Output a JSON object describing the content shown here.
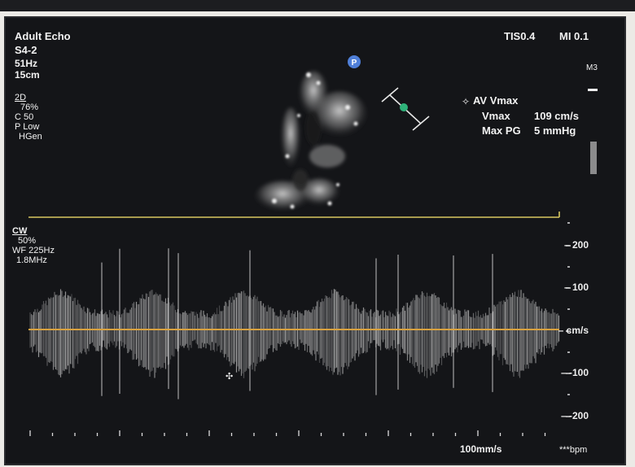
{
  "header": {
    "preset": "Adult Echo",
    "probe": "S4-2",
    "frame_rate": "51Hz",
    "depth": "15cm",
    "tis": "TIS0.4",
    "mi": "MI 0.1",
    "marker": "M3"
  },
  "mode_2d": {
    "label": "2D",
    "gain": "76%",
    "compression": "C 50",
    "persistence": "P Low",
    "frequency": "HGen"
  },
  "cw_settings": {
    "label": "CW",
    "gain": "50%",
    "wall_filter": "WF 225Hz",
    "frequency": "1.8MHz"
  },
  "measurement": {
    "title": "AV Vmax",
    "vmax_label": "Vmax",
    "vmax_value": "109 cm/s",
    "pg_label": "Max PG",
    "pg_value": "5 mmHg"
  },
  "orientation_marker": "P",
  "velocity_scale": {
    "labels": [
      "200",
      "100",
      "cm/s",
      "-100",
      "-200"
    ]
  },
  "footer": {
    "sweep_speed": "100mm/s",
    "heart_rate": "***bpm"
  },
  "colors": {
    "background": "#141518",
    "baseline": "#d9a240",
    "line": "#d8c860",
    "marker": "#4f7fd8",
    "caliper_dot": "#2fb37a"
  }
}
